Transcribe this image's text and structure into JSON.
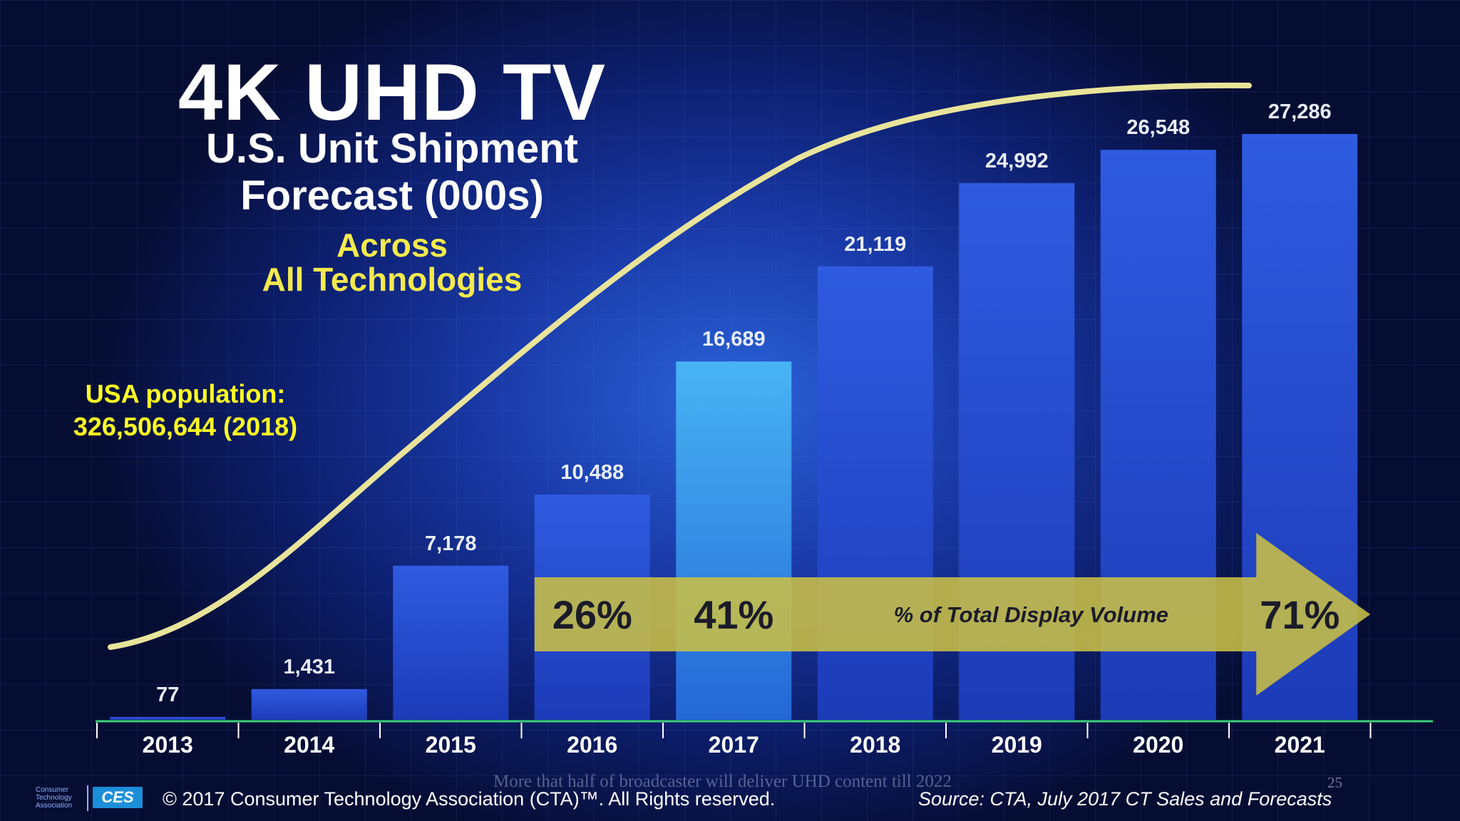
{
  "title": "4K UHD TV",
  "subtitle_line1": "U.S. Unit Shipment",
  "subtitle_line2": "Forecast (000s)",
  "tech_line1": "Across",
  "tech_line2": "All Technologies",
  "annotation_line1": "USA population:",
  "annotation_line2": "326,506,644 (2018)",
  "footer_note": "More that half of broadcaster will deliver UHD content till 2022",
  "page_number": "25",
  "copyright": "© 2017 Consumer Technology Association (CTA)™. All Rights reserved.",
  "source": "Source: CTA, July 2017 CT Sales and Forecasts",
  "logo": {
    "org_text": "Consumer Technology Association",
    "badge": "CES"
  },
  "colors": {
    "bar": "#2447c9",
    "bar_highlight": "#3fa6ee",
    "curve": "#e9e49a",
    "arrow": "#c9bf45",
    "value_label": "#e8eefc",
    "annotation": "#ffff22"
  },
  "chart_data": {
    "type": "bar",
    "categories": [
      "2013",
      "2014",
      "2015",
      "2016",
      "2017",
      "2018",
      "2019",
      "2020",
      "2021"
    ],
    "values": [
      77,
      1431,
      7178,
      10488,
      16689,
      21119,
      24992,
      26548,
      27286
    ],
    "value_labels": [
      "77",
      "1,431",
      "7,178",
      "10,488",
      "16,689",
      "21,119",
      "24,992",
      "26,548",
      "27,286"
    ],
    "ylim": [
      0,
      27286
    ],
    "grid": true,
    "cumulative_curve": true,
    "arrow": {
      "label": "% of Total Display Volume",
      "percentages": [
        {
          "year": "2016",
          "text": "26%"
        },
        {
          "year": "2017",
          "text": "41%"
        },
        {
          "year": "2021",
          "text": "71%"
        }
      ]
    }
  }
}
